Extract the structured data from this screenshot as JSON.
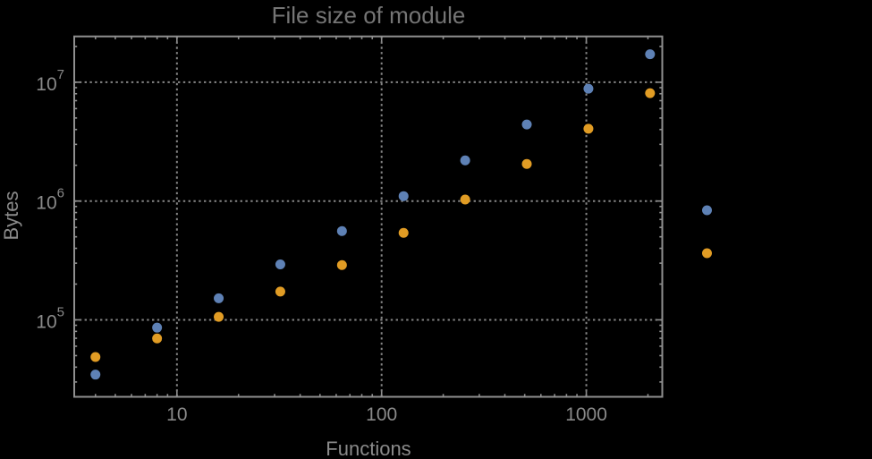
{
  "figure": {
    "background": "#000000",
    "frame_color": "#8f8f8f",
    "grid_color": "#858585",
    "tick_color": "#8f8f8f",
    "title_color": "#757575",
    "label_color": "#8a8a8a"
  },
  "chart_data": {
    "type": "scatter",
    "title": "File size of module",
    "xlabel": "Functions",
    "ylabel": "Bytes",
    "xscale": "log",
    "yscale": "log",
    "xlim": [
      3.15,
      2350
    ],
    "ylim": [
      22500,
      24300000
    ],
    "grid": "dotted",
    "legend_position": "right",
    "x": [
      4,
      8,
      16,
      32,
      64,
      128,
      256,
      512,
      1024,
      2048
    ],
    "series": [
      {
        "name": "series-1-blue",
        "color": "#5e81b5",
        "values": [
          34600,
          86000,
          152000,
          293000,
          559000,
          1100000,
          2200000,
          4410000,
          8820000,
          17200000
        ]
      },
      {
        "name": "series-2-orange",
        "color": "#e19c24",
        "values": [
          48700,
          69700,
          106000,
          173000,
          289000,
          540000,
          1030000,
          2050000,
          4060000,
          8090000
        ]
      }
    ],
    "x_ticks": [
      {
        "value": 10,
        "label": "10"
      },
      {
        "value": 100,
        "label": "100"
      },
      {
        "value": 1000,
        "label": "1000"
      }
    ],
    "y_ticks": [
      {
        "value": 100000,
        "base": "10",
        "exp": "5"
      },
      {
        "value": 1000000,
        "base": "10",
        "exp": "6"
      },
      {
        "value": 10000000,
        "base": "10",
        "exp": "7"
      }
    ],
    "legend": {
      "labels_visible": false,
      "markers": [
        {
          "series": "series-1-blue",
          "color": "#5e81b5"
        },
        {
          "series": "series-2-orange",
          "color": "#e19c24"
        }
      ]
    }
  }
}
